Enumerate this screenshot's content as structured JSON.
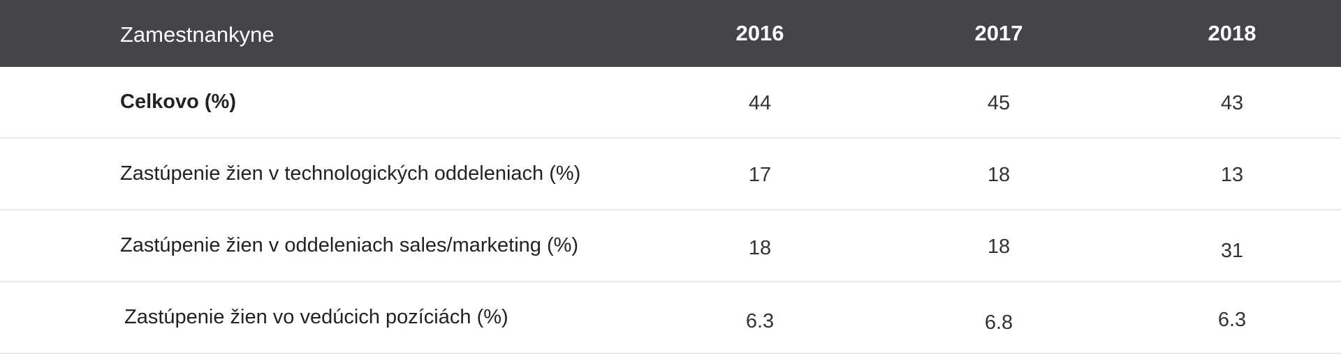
{
  "table": {
    "header": {
      "label": "Zamestnankyne",
      "years": [
        "2016",
        "2017",
        "2018"
      ]
    },
    "rows": [
      {
        "label": "Celkovo (%)",
        "bold": true,
        "values": [
          "44",
          "45",
          "43"
        ]
      },
      {
        "label": "Zastúpenie žien v technologických oddeleniach (%)",
        "bold": false,
        "values": [
          "17",
          "18",
          "13"
        ]
      },
      {
        "label": "Zastúpenie žien v oddeleniach sales/marketing (%)",
        "bold": false,
        "values": [
          "18",
          "18",
          "31"
        ]
      },
      {
        "label": "Zastúpenie žien vo vedúcich pozíciách (%)",
        "bold": false,
        "values": [
          "6.3",
          "6.8",
          "6.3"
        ]
      }
    ]
  },
  "colors": {
    "header_background": "#444548",
    "header_text": "#ffffff",
    "row_divider": "#e8e8e8"
  }
}
